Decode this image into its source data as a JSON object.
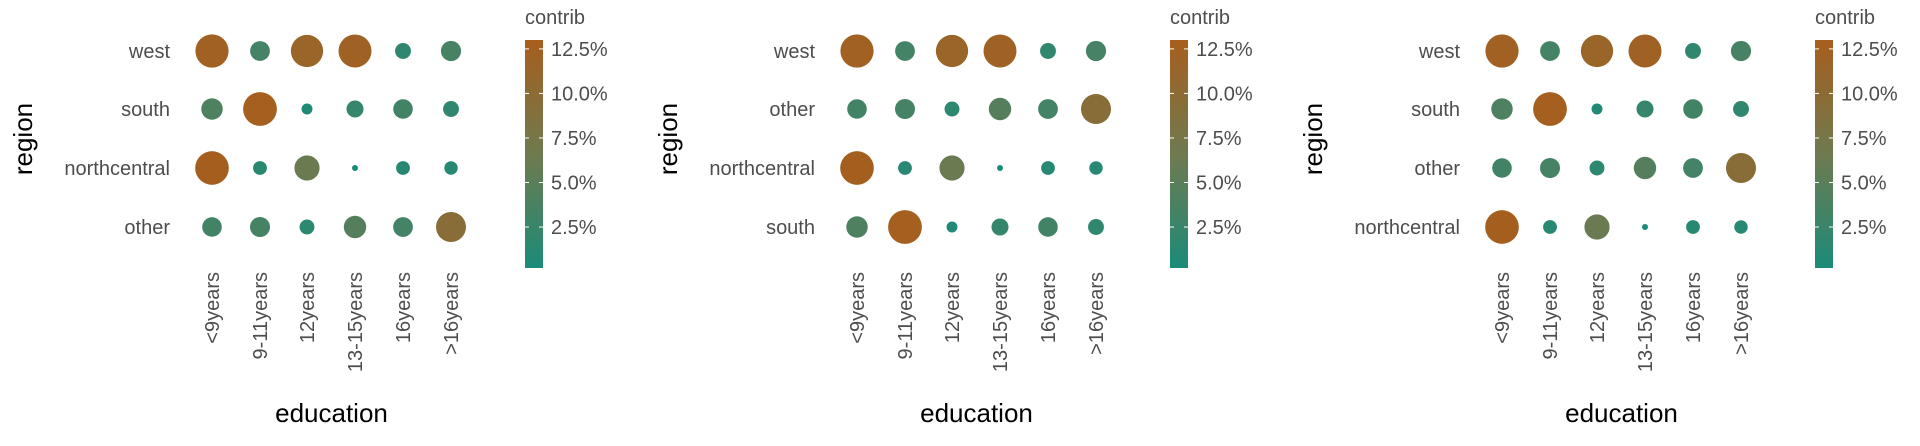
{
  "colors": {
    "low": "#1b8b79",
    "mid": "#6f7a4f",
    "high": "#a75e1d",
    "text": "#4d4d4d",
    "title": "#000000"
  },
  "chart_data": [
    {
      "type": "scatter",
      "xlabel": "education",
      "ylabel": "region",
      "x_categories": [
        "<9years",
        "9-11years",
        "12years",
        "13-15years",
        "16years",
        ">16years"
      ],
      "y_categories": [
        "west",
        "south",
        "northcentral",
        "other"
      ],
      "values": [
        [
          12.3,
          3.3,
          11.5,
          12.1,
          1.8,
          3.5
        ],
        [
          4.1,
          12.8,
          0.6,
          2.2,
          3.2,
          1.8
        ],
        [
          12.7,
          1.2,
          6.2,
          0.2,
          1.2,
          1.1
        ],
        [
          3.2,
          3.4,
          1.5,
          4.6,
          3.3,
          9.6
        ]
      ],
      "legend": {
        "title": "contrib",
        "labels": [
          "12.5%",
          "10.0%",
          "7.5%",
          "5.0%",
          "2.5%"
        ],
        "ticks": [
          12.5,
          10.0,
          7.5,
          5.0,
          2.5
        ],
        "range": [
          0.2,
          13.0
        ]
      }
    },
    {
      "type": "scatter",
      "xlabel": "education",
      "ylabel": "region",
      "x_categories": [
        "<9years",
        "9-11years",
        "12years",
        "13-15years",
        "16years",
        ">16years"
      ],
      "y_categories": [
        "west",
        "other",
        "northcentral",
        "south"
      ],
      "values": [
        [
          12.3,
          3.3,
          11.5,
          12.1,
          1.8,
          3.5
        ],
        [
          3.2,
          3.4,
          1.5,
          4.6,
          3.3,
          9.6
        ],
        [
          12.7,
          1.2,
          6.2,
          0.2,
          1.2,
          1.1
        ],
        [
          4.1,
          12.8,
          0.6,
          2.2,
          3.2,
          1.8
        ]
      ],
      "legend": {
        "title": "contrib",
        "labels": [
          "12.5%",
          "10.0%",
          "7.5%",
          "5.0%",
          "2.5%"
        ],
        "ticks": [
          12.5,
          10.0,
          7.5,
          5.0,
          2.5
        ],
        "range": [
          0.2,
          13.0
        ]
      }
    },
    {
      "type": "scatter",
      "xlabel": "education",
      "ylabel": "region",
      "x_categories": [
        "<9years",
        "9-11years",
        "12years",
        "13-15years",
        "16years",
        ">16years"
      ],
      "y_categories": [
        "west",
        "south",
        "other",
        "northcentral"
      ],
      "values": [
        [
          12.3,
          3.3,
          11.5,
          12.1,
          1.8,
          3.5
        ],
        [
          4.1,
          12.8,
          0.6,
          2.2,
          3.2,
          1.8
        ],
        [
          3.2,
          3.4,
          1.5,
          4.6,
          3.3,
          9.6
        ],
        [
          12.7,
          1.2,
          6.2,
          0.2,
          1.2,
          1.1
        ]
      ],
      "legend": {
        "title": "contrib",
        "labels": [
          "12.5%",
          "10.0%",
          "7.5%",
          "5.0%",
          "2.5%"
        ],
        "ticks": [
          12.5,
          10.0,
          7.5,
          5.0,
          2.5
        ],
        "range": [
          0.2,
          13.0
        ]
      }
    }
  ]
}
